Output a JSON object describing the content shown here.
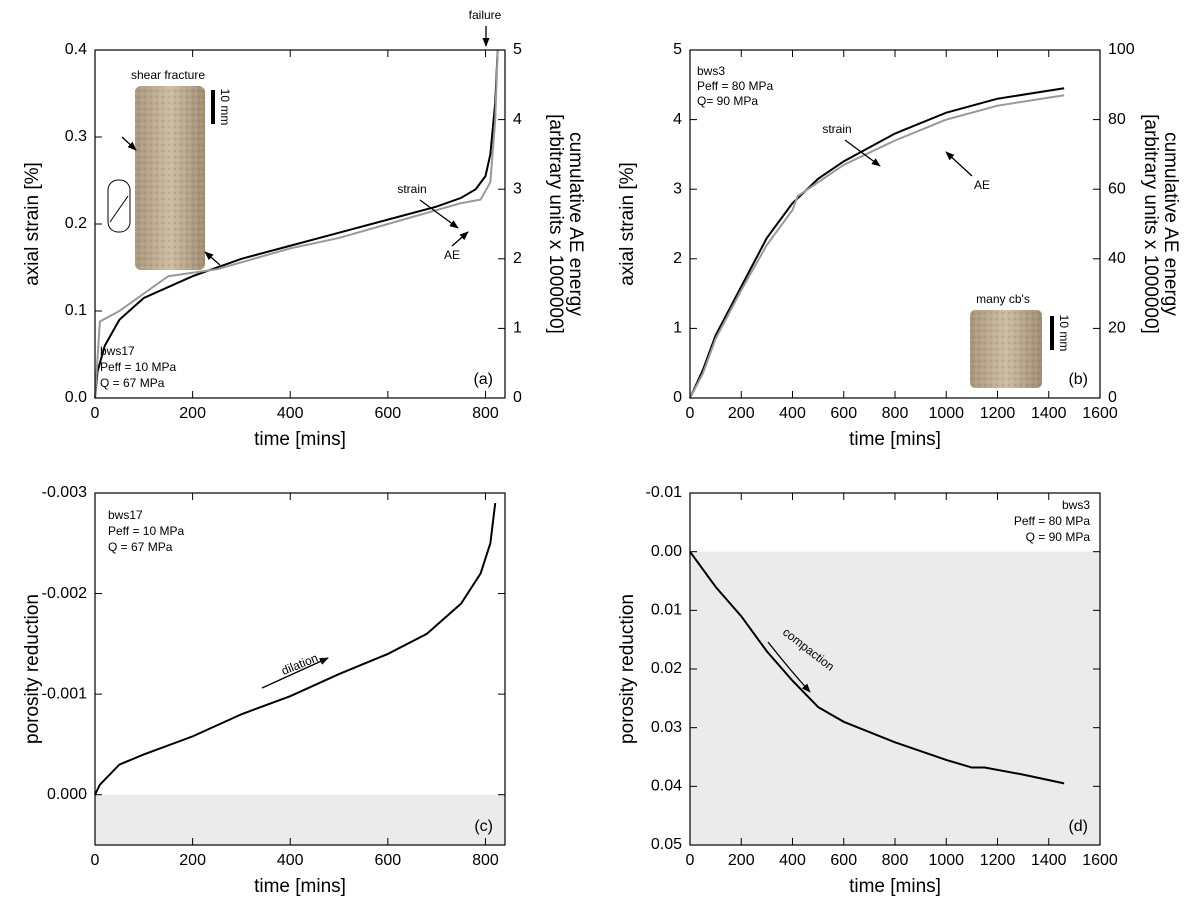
{
  "chart_data": [
    {
      "type": "line",
      "xlabel": "time [mins]",
      "ylabel": "axial strain [%]",
      "y2label": [
        "cumulative AE energy",
        "[arbitrary units x 1000000]"
      ],
      "panel_label": "(a)",
      "annotations": [
        "failure",
        "shear fracture",
        "10 mm",
        "bws17",
        "Peff = 10 MPa",
        "Q = 67 MPa"
      ],
      "xlim": [
        0,
        840
      ],
      "xticks": [
        0,
        200,
        400,
        600,
        800
      ],
      "ylim": [
        0,
        0.4
      ],
      "yticks": [
        {
          "value": 0,
          "label": "0.0"
        },
        0.1,
        0.2,
        0.3,
        0.4
      ],
      "y2lim": [
        0,
        5
      ],
      "y2ticks": [
        0,
        1,
        2,
        3,
        4,
        5
      ],
      "series": [
        {
          "name": "strain",
          "color": "#000000",
          "x": [
            0,
            5,
            20,
            50,
            100,
            200,
            300,
            400,
            500,
            600,
            700,
            750,
            780,
            800,
            810,
            820,
            825
          ],
          "values": [
            0,
            0.03,
            0.06,
            0.09,
            0.115,
            0.14,
            0.16,
            0.175,
            0.19,
            0.205,
            0.22,
            0.23,
            0.24,
            0.255,
            0.28,
            0.34,
            0.4
          ]
        },
        {
          "name": "AE",
          "color": "#999999",
          "axis": "y2",
          "x": [
            0,
            10,
            50,
            100,
            150,
            200,
            250,
            300,
            400,
            500,
            600,
            700,
            750,
            790,
            810,
            820,
            825
          ],
          "values": [
            0,
            1.1,
            1.25,
            1.5,
            1.75,
            1.8,
            1.85,
            1.95,
            2.15,
            2.3,
            2.5,
            2.7,
            2.8,
            2.85,
            3.1,
            4,
            5
          ]
        }
      ]
    },
    {
      "type": "line",
      "xlabel": "time [mins]",
      "ylabel": "axial strain [%]",
      "y2label": [
        "cumulative AE energy",
        "[arbitrary units x 1000000]"
      ],
      "panel_label": "(b)",
      "annotations": [
        "bws3",
        "Peff = 80 MPa",
        "Q= 90 MPa",
        "many cb's",
        "10 mm"
      ],
      "xlim": [
        0,
        1600
      ],
      "xticks": [
        0,
        200,
        400,
        600,
        800,
        1000,
        1200,
        1400,
        1600
      ],
      "ylim": [
        0,
        5
      ],
      "yticks": [
        0,
        1,
        2,
        3,
        4,
        5
      ],
      "y2lim": [
        0,
        100
      ],
      "y2ticks": [
        0,
        20,
        40,
        60,
        80,
        100
      ],
      "series": [
        {
          "name": "strain",
          "color": "#000000",
          "x": [
            0,
            50,
            100,
            200,
            300,
            400,
            500,
            600,
            800,
            1000,
            1200,
            1460
          ],
          "values": [
            0,
            0.4,
            0.9,
            1.6,
            2.3,
            2.8,
            3.15,
            3.4,
            3.8,
            4.1,
            4.3,
            4.45
          ]
        },
        {
          "name": "AE",
          "color": "#999999",
          "axis": "y2",
          "x": [
            0,
            50,
            100,
            200,
            300,
            400,
            420,
            500,
            600,
            800,
            1000,
            1200,
            1460
          ],
          "values": [
            0,
            7,
            17,
            31,
            44,
            54,
            58,
            62,
            67,
            74,
            80,
            84,
            87
          ]
        }
      ]
    },
    {
      "type": "line",
      "xlabel": "time [mins]",
      "ylabel": "porosity reduction",
      "panel_label": "(c)",
      "annotations": [
        "bws17",
        "Peff = 10 MPa",
        "Q = 67 MPa",
        "dilation"
      ],
      "xlim": [
        0,
        840
      ],
      "xticks": [
        0,
        200,
        400,
        600,
        800
      ],
      "ylim": [
        0.0005,
        -0.003
      ],
      "yticks": [
        -0.003,
        -0.002,
        -0.001,
        {
          "value": 0,
          "label": "0.000"
        }
      ],
      "color": "#000000",
      "x": [
        0,
        10,
        50,
        100,
        200,
        300,
        400,
        500,
        600,
        680,
        750,
        790,
        810,
        820
      ],
      "values": [
        0,
        -0.0001,
        -0.0003,
        -0.0004,
        -0.00058,
        -0.0008,
        -0.00098,
        -0.0012,
        -0.0014,
        -0.0016,
        -0.0019,
        -0.0022,
        -0.0025,
        -0.0029
      ]
    },
    {
      "type": "line",
      "xlabel": "time [mins]",
      "ylabel": "porosity reduction",
      "panel_label": "(d)",
      "annotations": [
        "bws3",
        "Peff = 80 MPa",
        "Q = 90 MPa",
        "compaction"
      ],
      "xlim": [
        0,
        1600
      ],
      "xticks": [
        0,
        200,
        400,
        600,
        800,
        1000,
        1200,
        1400,
        1600
      ],
      "ylim": [
        0.05,
        -0.01
      ],
      "yticks": [
        -0.01,
        {
          "value": 0,
          "label": "0.00"
        },
        0.01,
        0.02,
        0.03,
        0.04,
        0.05
      ],
      "color": "#000000",
      "x": [
        0,
        50,
        100,
        200,
        300,
        400,
        500,
        600,
        800,
        1000,
        1100,
        1150,
        1300,
        1460
      ],
      "values": [
        0,
        0.003,
        0.006,
        0.011,
        0.017,
        0.022,
        0.0265,
        0.029,
        0.0325,
        0.0355,
        0.0368,
        0.0368,
        0.038,
        0.0395
      ]
    }
  ]
}
